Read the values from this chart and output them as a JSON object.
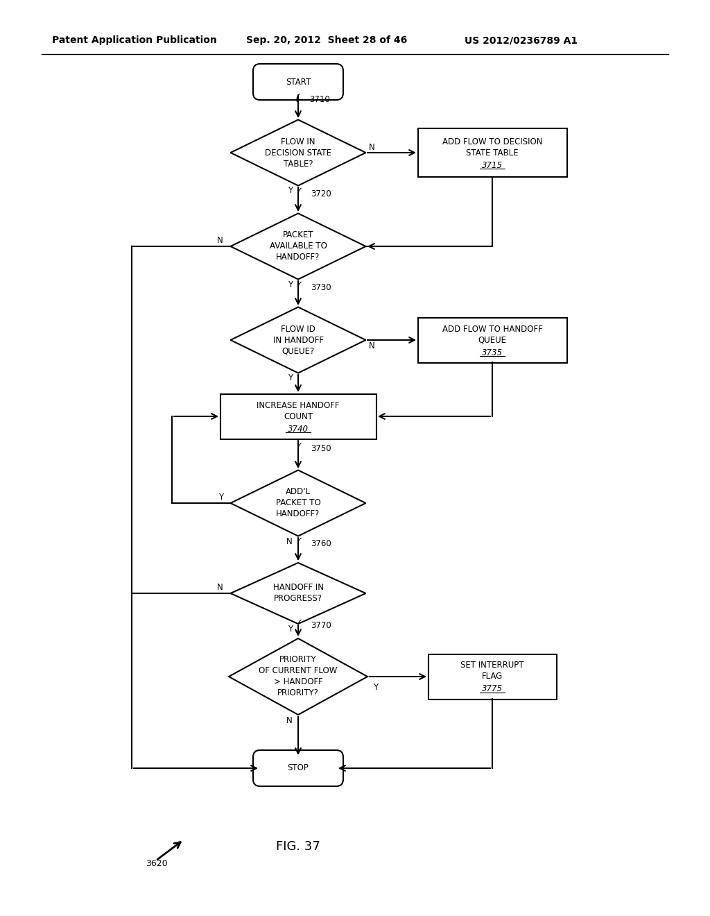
{
  "header_left": "Patent Application Publication",
  "header_mid": "Sep. 20, 2012  Sheet 28 of 46",
  "header_right": "US 2012/0236789 A1",
  "figure_label": "FIG. 37",
  "figure_number": "3620",
  "bg_color": "#ffffff",
  "line_color": "#000000",
  "lw": 1.5,
  "font_size_node": 8.5,
  "font_size_ref": 8.5,
  "font_size_label": 8.5,
  "font_size_header": 10,
  "font_size_fig": 12
}
